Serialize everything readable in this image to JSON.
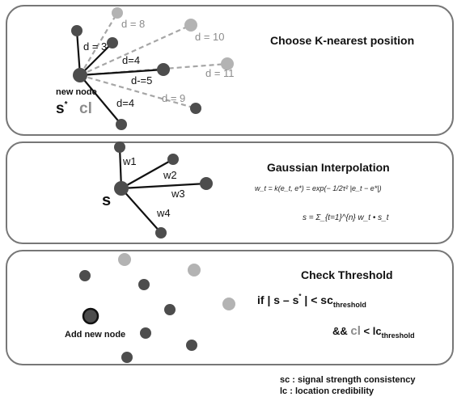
{
  "panels": [
    {
      "title": "Choose K-nearest position",
      "new_node_label": "new node",
      "signal_symbol": "s",
      "signal_sup": "*",
      "credibility_symbol": "cl",
      "edges": [
        {
          "label": "d = 3",
          "style": "solid"
        },
        {
          "label": "d = 8",
          "style": "dashed"
        },
        {
          "label": "d = 10",
          "style": "dashed"
        },
        {
          "label": "d=4",
          "style": "solid"
        },
        {
          "label": "d = 11",
          "style": "dashed"
        },
        {
          "label": "d-=5",
          "style": "solid"
        },
        {
          "label": "d = 9",
          "style": "dashed"
        },
        {
          "label": "d=4",
          "style": "solid"
        }
      ]
    },
    {
      "title": "Gaussian Interpolation",
      "center_label": "s",
      "weights": [
        "w1",
        "w2",
        "w3",
        "w4"
      ],
      "formula_weight": "w_t = k(e_t, e*) = exp(− 1/2τ² |e_t − e*|)",
      "formula_sum": "s = Σ_{t=1}^{n} w_t • s_t"
    },
    {
      "title": "Check Threshold",
      "add_node_label": "Add new node",
      "cond1": {
        "prefix": "if | s – s",
        "sup": "*",
        "mid": " | < sc",
        "sub": "threshold"
      },
      "cond2": {
        "prefix": "&& ",
        "cl": "cl",
        "mid": " < lc",
        "sub": "threshold"
      }
    }
  ],
  "legend": [
    "sc : signal  strength consistency",
    "lc : location credibility"
  ],
  "colors": {
    "panel_border": "#777777",
    "node_dark": "#4d4d4d",
    "node_light": "#b3b3b3",
    "dashed_edge": "#a6a6a6",
    "dim_text": "#8c8c8c"
  }
}
